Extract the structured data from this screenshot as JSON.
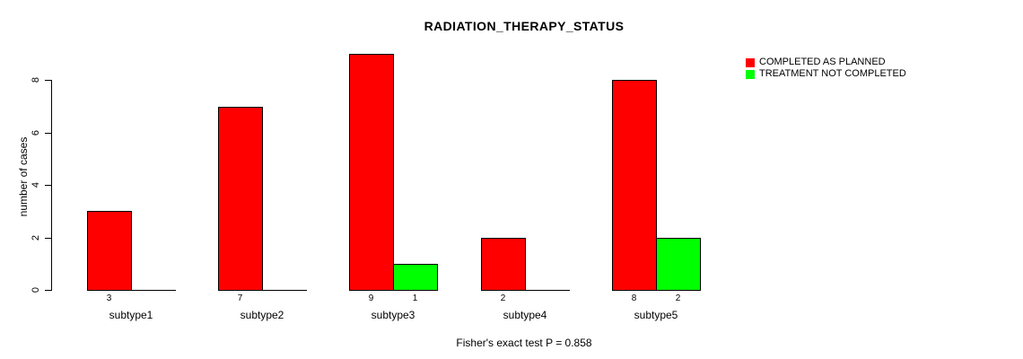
{
  "chart_data": {
    "type": "bar",
    "title": "RADIATION_THERAPY_STATUS",
    "ylabel": "number of cases",
    "xlabel": "",
    "categories": [
      "subtype1",
      "subtype2",
      "subtype3",
      "subtype4",
      "subtype5"
    ],
    "series": [
      {
        "name": "COMPLETED AS PLANNED",
        "color": "#FF0000",
        "values": [
          3,
          7,
          9,
          2,
          8
        ]
      },
      {
        "name": "TREATMENT NOT COMPLETED",
        "color": "#00FF00",
        "values": [
          0,
          0,
          1,
          0,
          2
        ]
      }
    ],
    "yticks": [
      0,
      2,
      4,
      6,
      8
    ],
    "ylim": [
      0,
      9
    ],
    "grid": false,
    "legend_position": "topright",
    "bar_value_labels_shown_for_nonzero": true,
    "annotation": "Fisher's exact test P = 0.858",
    "colors": {
      "background": "#FFFFFF",
      "bar_border": "#000000",
      "text": "#000000"
    }
  }
}
